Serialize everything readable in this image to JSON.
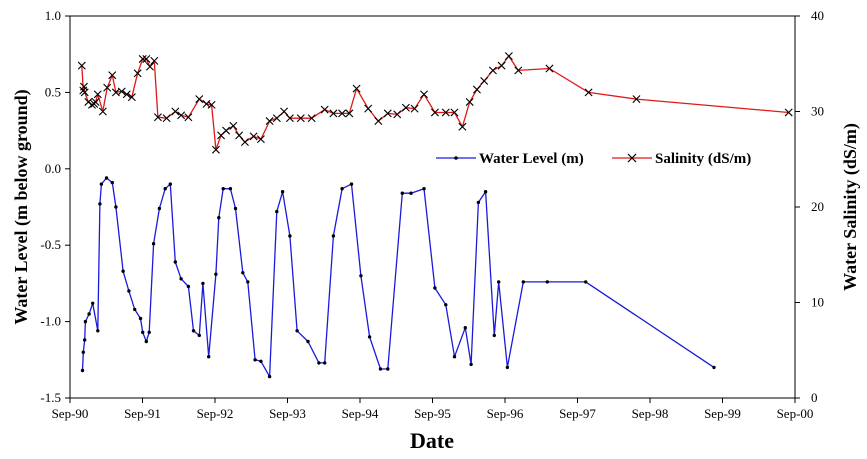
{
  "chart_data": {
    "type": "line",
    "xlabel": "Date",
    "ylabel_left": "Water Level (m below ground)",
    "ylabel_right": "Water Salinity (dS/m)",
    "x_tick_labels": [
      "Sep-90",
      "Sep-91",
      "Sep-92",
      "Sep-93",
      "Sep-94",
      "Sep-95",
      "Sep-96",
      "Sep-97",
      "Sep-98",
      "Sep-99",
      "Sep-00"
    ],
    "xlim": [
      1990.667,
      2000.667
    ],
    "ylim_left": [
      -1.5,
      1.0
    ],
    "ylim_right": [
      0,
      40
    ],
    "left_tick_labels": [
      "-1.5",
      "-1.0",
      "-0.5",
      "0.0",
      "0.5",
      "1.0"
    ],
    "right_tick_labels": [
      "0",
      "10",
      "20",
      "30",
      "40"
    ],
    "legend_position": "center-right",
    "series": [
      {
        "name": "Water Level (m)",
        "axis": "left",
        "color": "#1a1adc",
        "marker": "dot",
        "x": [
          1990.84,
          1990.85,
          1990.87,
          1990.88,
          1990.93,
          1990.98,
          1991.05,
          1991.08,
          1991.1,
          1991.17,
          1991.25,
          1991.3,
          1991.4,
          1991.48,
          1991.56,
          1991.64,
          1991.67,
          1991.72,
          1991.76,
          1991.82,
          1991.9,
          1991.98,
          1992.05,
          1992.12,
          1992.2,
          1992.3,
          1992.37,
          1992.45,
          1992.5,
          1992.58,
          1992.68,
          1992.72,
          1992.78,
          1992.88,
          1992.95,
          1993.05,
          1993.12,
          1993.22,
          1993.3,
          1993.42,
          1993.52,
          1993.6,
          1993.7,
          1993.8,
          1993.95,
          1994.1,
          1994.18,
          1994.3,
          1994.42,
          1994.55,
          1994.68,
          1994.8,
          1994.95,
          1995.05,
          1995.25,
          1995.37,
          1995.55,
          1995.7,
          1995.85,
          1995.97,
          1996.12,
          1996.2,
          1996.3,
          1996.4,
          1996.52,
          1996.58,
          1996.7,
          1996.92,
          1997.25,
          1997.78,
          1999.55
        ],
        "y": [
          -1.32,
          -1.2,
          -1.12,
          -1.0,
          -0.95,
          -0.88,
          -1.06,
          -0.23,
          -0.1,
          -0.06,
          -0.09,
          -0.25,
          -0.67,
          -0.8,
          -0.92,
          -0.98,
          -1.07,
          -1.13,
          -1.07,
          -0.49,
          -0.26,
          -0.13,
          -0.1,
          -0.61,
          -0.72,
          -0.77,
          -1.06,
          -1.09,
          -0.75,
          -1.23,
          -0.69,
          -0.32,
          -0.13,
          -0.13,
          -0.26,
          -0.68,
          -0.74,
          -1.25,
          -1.26,
          -1.36,
          -0.28,
          -0.15,
          -0.44,
          -1.06,
          -1.13,
          -1.27,
          -1.27,
          -0.44,
          -0.13,
          -0.1,
          -0.7,
          -1.1,
          -1.31,
          -1.31,
          -0.16,
          -0.16,
          -0.13,
          -0.78,
          -0.89,
          -1.23,
          -1.04,
          -1.28,
          -0.22,
          -0.15,
          -1.09,
          -0.74,
          -1.3,
          -0.74,
          -0.74,
          -0.74,
          -1.3
        ]
      },
      {
        "name": "Salinity (dS/m)",
        "axis": "right",
        "color": "#e01818",
        "marker": "x",
        "x": [
          1990.83,
          1990.85,
          1990.86,
          1990.87,
          1990.92,
          1990.97,
          1991.0,
          1991.02,
          1991.05,
          1991.12,
          1991.18,
          1991.25,
          1991.3,
          1991.38,
          1991.45,
          1991.52,
          1991.6,
          1991.67,
          1991.72,
          1991.77,
          1991.83,
          1991.88,
          1992.0,
          1992.12,
          1992.2,
          1992.3,
          1992.45,
          1992.55,
          1992.62,
          1992.68,
          1992.75,
          1992.82,
          1992.92,
          1993.0,
          1993.08,
          1993.2,
          1993.3,
          1993.42,
          1993.52,
          1993.62,
          1993.7,
          1993.85,
          1994.0,
          1994.18,
          1994.3,
          1994.42,
          1994.52,
          1994.62,
          1994.78,
          1994.92,
          1995.05,
          1995.18,
          1995.3,
          1995.42,
          1995.55,
          1995.7,
          1995.85,
          1995.97,
          1996.08,
          1996.18,
          1996.28,
          1996.38,
          1996.5,
          1996.62,
          1996.72,
          1996.85,
          1997.28,
          1997.82,
          1998.48,
          2000.58
        ],
        "y": [
          34.8,
          32.2,
          32.6,
          32.0,
          31.0,
          30.7,
          30.8,
          31.0,
          31.8,
          30.0,
          32.5,
          33.8,
          32.0,
          32.1,
          31.8,
          31.5,
          34.0,
          35.5,
          35.5,
          34.7,
          35.3,
          29.4,
          29.3,
          30.0,
          29.6,
          29.4,
          31.3,
          30.8,
          30.7,
          26.0,
          27.5,
          28.0,
          28.5,
          27.5,
          26.8,
          27.4,
          27.1,
          29.0,
          29.3,
          30.0,
          29.3,
          29.3,
          29.3,
          30.2,
          29.8,
          29.8,
          29.8,
          32.4,
          30.3,
          29.0,
          29.8,
          29.7,
          30.4,
          30.3,
          31.8,
          29.9,
          29.9,
          29.9,
          28.4,
          31.0,
          32.3,
          33.2,
          34.3,
          34.8,
          35.8,
          34.3,
          34.5,
          32.0,
          31.3,
          29.9
        ]
      }
    ]
  }
}
